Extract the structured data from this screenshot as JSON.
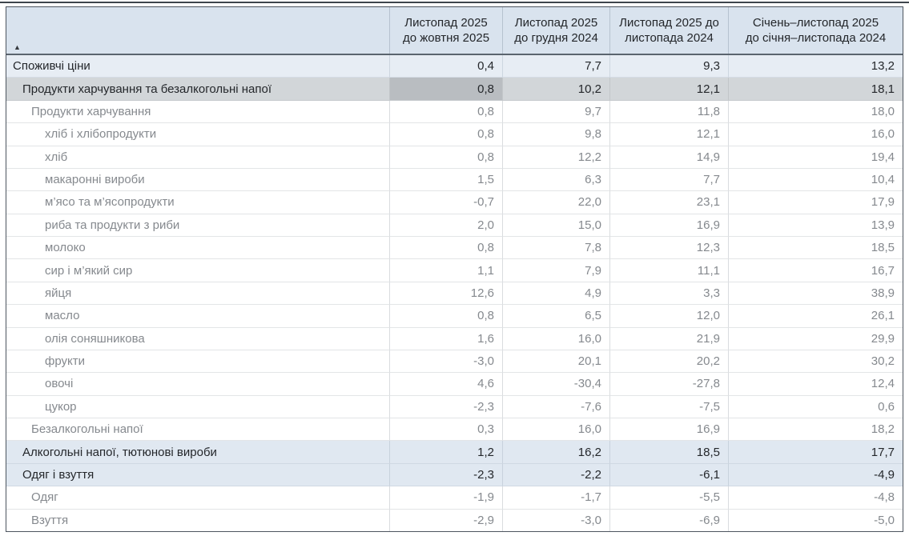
{
  "table": {
    "sort_icon": "▲",
    "columns": [
      {
        "line1": "Листопад 2025",
        "line2": "до жовтня 2025"
      },
      {
        "line1": "Листопад 2025",
        "line2": "до грудня 2024"
      },
      {
        "line1": "Листопад 2025 до",
        "line2": "листопада 2024"
      },
      {
        "line1": "Січень–листопад 2025",
        "line2": "до січня–листопада 2024"
      }
    ],
    "rows": [
      {
        "label": "Споживчі ціни",
        "level": 0,
        "tone": "blue-light",
        "values": [
          "0,4",
          "7,7",
          "9,3",
          "13,2"
        ]
      },
      {
        "label": "Продукти харчування та безалкогольні напої",
        "level": 1,
        "tone": "selected",
        "selected_cell": 0,
        "values": [
          "0,8",
          "10,2",
          "12,1",
          "18,1"
        ]
      },
      {
        "label": "Продукти харчування",
        "level": 2,
        "tone": "white",
        "values": [
          "0,8",
          "9,7",
          "11,8",
          "18,0"
        ]
      },
      {
        "label": "хліб і хлібопродукти",
        "level": 3,
        "tone": "white",
        "values": [
          "0,8",
          "9,8",
          "12,1",
          "16,0"
        ]
      },
      {
        "label": "хліб",
        "level": 3,
        "tone": "white",
        "values": [
          "0,8",
          "12,2",
          "14,9",
          "19,4"
        ]
      },
      {
        "label": "макаронні вироби",
        "level": 3,
        "tone": "white",
        "values": [
          "1,5",
          "6,3",
          "7,7",
          "10,4"
        ]
      },
      {
        "label": "м’ясо та м’ясопродукти",
        "level": 3,
        "tone": "white",
        "values": [
          "-0,7",
          "22,0",
          "23,1",
          "17,9"
        ]
      },
      {
        "label": "риба та продукти з риби",
        "level": 3,
        "tone": "white",
        "values": [
          "2,0",
          "15,0",
          "16,9",
          "13,9"
        ]
      },
      {
        "label": "молоко",
        "level": 3,
        "tone": "white",
        "values": [
          "0,8",
          "7,8",
          "12,3",
          "18,5"
        ]
      },
      {
        "label": "сир і м’який сир",
        "level": 3,
        "tone": "white",
        "values": [
          "1,1",
          "7,9",
          "11,1",
          "16,7"
        ]
      },
      {
        "label": "яйця",
        "level": 3,
        "tone": "white",
        "values": [
          "12,6",
          "4,9",
          "3,3",
          "38,9"
        ]
      },
      {
        "label": "масло",
        "level": 3,
        "tone": "white",
        "values": [
          "0,8",
          "6,5",
          "12,0",
          "26,1"
        ]
      },
      {
        "label": "олія соняшникова",
        "level": 3,
        "tone": "white",
        "values": [
          "1,6",
          "16,0",
          "21,9",
          "29,9"
        ]
      },
      {
        "label": "фрукти",
        "level": 3,
        "tone": "white",
        "values": [
          "-3,0",
          "20,1",
          "20,2",
          "30,2"
        ]
      },
      {
        "label": "овочі",
        "level": 3,
        "tone": "white",
        "values": [
          "4,6",
          "-30,4",
          "-27,8",
          "12,4"
        ]
      },
      {
        "label": "цукор",
        "level": 3,
        "tone": "white",
        "values": [
          "-2,3",
          "-7,6",
          "-7,5",
          "0,6"
        ]
      },
      {
        "label": "Безалкогольні напої",
        "level": 2,
        "tone": "white",
        "values": [
          "0,3",
          "16,0",
          "16,9",
          "18,2"
        ]
      },
      {
        "label": "Алкогольні напої, тютюнові вироби",
        "level": 1,
        "tone": "blue",
        "values": [
          "1,2",
          "16,2",
          "18,5",
          "17,7"
        ]
      },
      {
        "label": "Одяг і взуття",
        "level": 1,
        "tone": "blue",
        "values": [
          "-2,3",
          "-2,2",
          "-6,1",
          "-4,9"
        ]
      },
      {
        "label": "Одяг",
        "level": 2,
        "tone": "white",
        "values": [
          "-1,9",
          "-1,7",
          "-5,5",
          "-4,8"
        ]
      },
      {
        "label": "Взуття",
        "level": 2,
        "tone": "white",
        "values": [
          "-2,9",
          "-3,0",
          "-6,9",
          "-5,0"
        ]
      }
    ]
  }
}
